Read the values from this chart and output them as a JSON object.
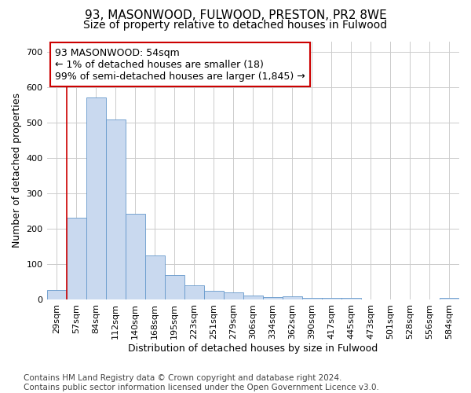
{
  "title": "93, MASONWOOD, FULWOOD, PRESTON, PR2 8WE",
  "subtitle": "Size of property relative to detached houses in Fulwood",
  "xlabel": "Distribution of detached houses by size in Fulwood",
  "ylabel": "Number of detached properties",
  "categories": [
    "29sqm",
    "57sqm",
    "84sqm",
    "112sqm",
    "140sqm",
    "168sqm",
    "195sqm",
    "223sqm",
    "251sqm",
    "279sqm",
    "306sqm",
    "334sqm",
    "362sqm",
    "390sqm",
    "417sqm",
    "445sqm",
    "473sqm",
    "501sqm",
    "528sqm",
    "556sqm",
    "584sqm"
  ],
  "values": [
    28,
    231,
    571,
    510,
    243,
    126,
    69,
    42,
    26,
    22,
    13,
    8,
    10,
    5,
    5,
    5,
    0,
    0,
    0,
    0,
    6
  ],
  "bar_color": "#c9d9ef",
  "bar_edge_color": "#6699cc",
  "bar_edge_width": 0.6,
  "vline_color": "#cc0000",
  "vline_x_index": 0.5,
  "annotation_text": "93 MASONWOOD: 54sqm\n← 1% of detached houses are smaller (18)\n99% of semi-detached houses are larger (1,845) →",
  "annotation_box_facecolor": "#ffffff",
  "annotation_box_edgecolor": "#cc0000",
  "ylim": [
    0,
    730
  ],
  "yticks": [
    0,
    100,
    200,
    300,
    400,
    500,
    600,
    700
  ],
  "grid_color": "#cccccc",
  "fig_background": "#ffffff",
  "ax_background": "#ffffff",
  "footer_text": "Contains HM Land Registry data © Crown copyright and database right 2024.\nContains public sector information licensed under the Open Government Licence v3.0.",
  "title_fontsize": 11,
  "subtitle_fontsize": 10,
  "xlabel_fontsize": 9,
  "ylabel_fontsize": 9,
  "tick_fontsize": 8,
  "footer_fontsize": 7.5,
  "annotation_fontsize": 9
}
